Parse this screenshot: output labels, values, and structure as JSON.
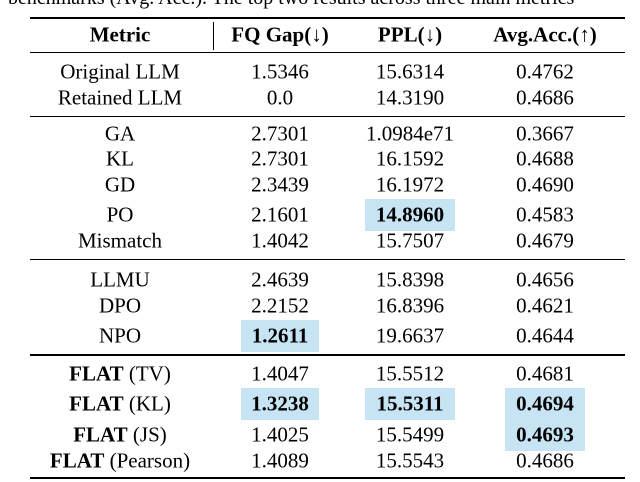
{
  "caption": "benchmarks (Avg. Acc.). The top two results across three main metrics",
  "table": {
    "columns": [
      "Metric",
      "FQ Gap(↓)",
      "PPL(↓)",
      "Avg.Acc.(↑)"
    ],
    "groups": [
      {
        "rows": [
          {
            "metric": {
              "text": "Original LLM"
            },
            "values": [
              "1.5346",
              "15.6314",
              "0.4762"
            ],
            "highlight": []
          },
          {
            "metric": {
              "text": "Retained LLM"
            },
            "values": [
              "0.0",
              "14.3190",
              "0.4686"
            ],
            "highlight": []
          }
        ]
      },
      {
        "rows": [
          {
            "metric": {
              "text": "GA"
            },
            "values": [
              "2.7301",
              "1.0984e71",
              "0.3667"
            ],
            "highlight": []
          },
          {
            "metric": {
              "text": "KL"
            },
            "values": [
              "2.7301",
              "16.1592",
              "0.4688"
            ],
            "highlight": []
          },
          {
            "metric": {
              "text": "GD"
            },
            "values": [
              "2.3439",
              "16.1972",
              "0.4690"
            ],
            "highlight": []
          },
          {
            "metric": {
              "text": "PO"
            },
            "values": [
              "2.1601",
              "14.8960",
              "0.4583"
            ],
            "highlight": [
              1
            ]
          },
          {
            "metric": {
              "text": "Mismatch"
            },
            "values": [
              "1.4042",
              "15.7507",
              "0.4679"
            ],
            "highlight": []
          }
        ]
      },
      {
        "rows": [
          {
            "metric": {
              "text": "LLMU"
            },
            "values": [
              "2.4639",
              "15.8398",
              "0.4656"
            ],
            "highlight": []
          },
          {
            "metric": {
              "text": "DPO"
            },
            "values": [
              "2.2152",
              "16.8396",
              "0.4621"
            ],
            "highlight": []
          },
          {
            "metric": {
              "text": "NPO"
            },
            "values": [
              "1.2611",
              "19.6637",
              "0.4644"
            ],
            "highlight": [
              0
            ]
          }
        ]
      },
      {
        "rows": [
          {
            "metric": {
              "bold": "FLAT",
              "text": "(TV)"
            },
            "values": [
              "1.4047",
              "15.5512",
              "0.4681"
            ],
            "highlight": []
          },
          {
            "metric": {
              "bold": "FLAT",
              "text": "(KL)"
            },
            "values": [
              "1.3238",
              "15.5311",
              "0.4694"
            ],
            "highlight": [
              0,
              1,
              2
            ]
          },
          {
            "metric": {
              "bold": "FLAT",
              "text": "(JS)"
            },
            "values": [
              "1.4025",
              "15.5499",
              "0.4693"
            ],
            "highlight": [
              2
            ]
          },
          {
            "metric": {
              "bold": "FLAT",
              "text": "(Pearson)"
            },
            "values": [
              "1.4089",
              "15.5543",
              "0.4686"
            ],
            "highlight": []
          }
        ]
      }
    ]
  }
}
